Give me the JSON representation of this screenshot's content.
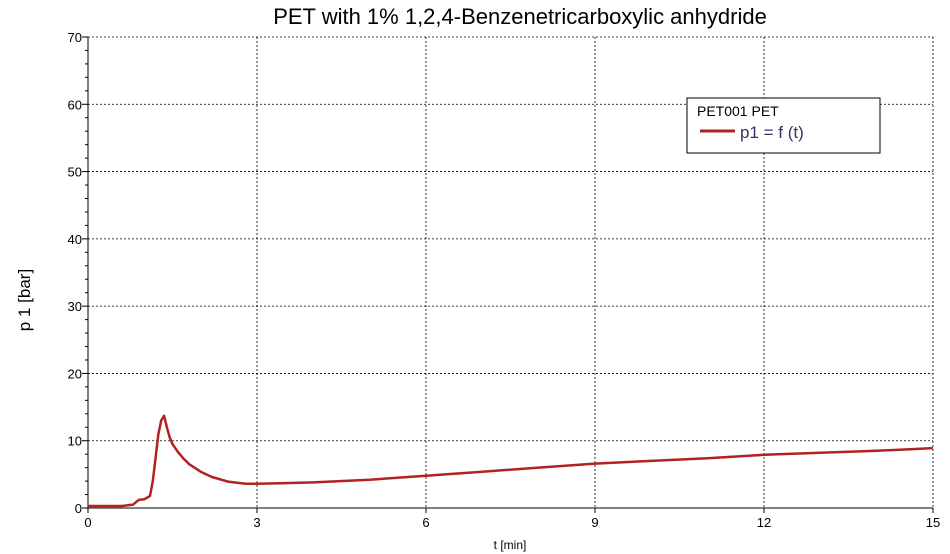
{
  "chart_data": {
    "type": "line",
    "title": "PET with 1% 1,2,4-Benzenetricarboxylic anhydride",
    "xlabel": "t [min]",
    "ylabel": "p 1 [bar]",
    "xlim": [
      0,
      15
    ],
    "ylim": [
      0,
      70
    ],
    "x_ticks": [
      "0",
      "3",
      "6",
      "9",
      "12",
      "15"
    ],
    "y_ticks": [
      "0",
      "10",
      "20",
      "30",
      "40",
      "50",
      "60",
      "70"
    ],
    "grid": true,
    "legend_placement": "top-right",
    "legend_title": "PET001 PET",
    "series": [
      {
        "name": "p1 = f (t)",
        "color": "#b22222",
        "x": [
          0,
          0.3,
          0.6,
          0.8,
          0.9,
          1.0,
          1.1,
          1.15,
          1.2,
          1.25,
          1.3,
          1.35,
          1.4,
          1.45,
          1.5,
          1.6,
          1.7,
          1.8,
          2.0,
          2.2,
          2.5,
          2.8,
          3.0,
          3.5,
          4.0,
          5.0,
          6.0,
          7.0,
          8.0,
          9.0,
          10.0,
          11.0,
          12.0,
          13.0,
          14.0,
          14.5,
          15.0
        ],
        "values": [
          0.3,
          0.3,
          0.3,
          0.5,
          1.2,
          1.3,
          1.8,
          4.0,
          7.5,
          11.0,
          13.0,
          13.7,
          12.0,
          10.5,
          9.5,
          8.3,
          7.3,
          6.5,
          5.4,
          4.6,
          3.9,
          3.6,
          3.6,
          3.7,
          3.8,
          4.2,
          4.8,
          5.4,
          6.0,
          6.6,
          7.0,
          7.4,
          7.9,
          8.2,
          8.5,
          8.7,
          8.9
        ]
      }
    ]
  }
}
